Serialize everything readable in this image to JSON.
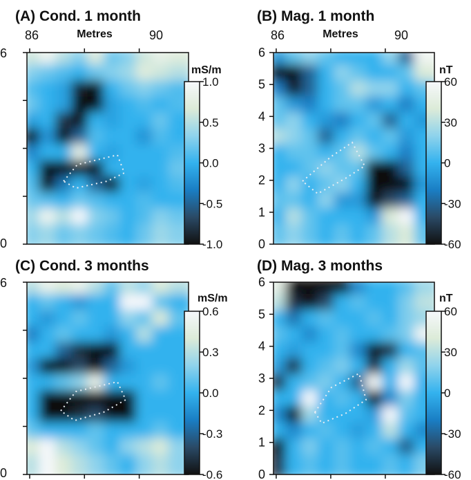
{
  "figure": {
    "type": "heatmap-grid"
  },
  "colorscale": [
    "#111111",
    "#2a4a66",
    "#1a7ec4",
    "#33b2ee",
    "#8fd3ec",
    "#dcebd8",
    "#f6f8fb"
  ],
  "chart_data": [
    {
      "type": "heatmap",
      "title": "(A) Cond. 1 month",
      "xlabel": "Metres",
      "x_ticks": [
        86,
        90
      ],
      "xlim": [
        85.9,
        91.8
      ],
      "ylim": [
        0,
        6
      ],
      "y_ticks": [
        0,
        6
      ],
      "colorbar": {
        "unit": "mS/m",
        "ticks": [
          "1.0",
          "0.5",
          "0.0",
          "-0.5",
          "-1.0"
        ],
        "range": [
          -1.0,
          1.0
        ]
      },
      "grid": {
        "rows": 12,
        "cols": 10,
        "values": [
          [
            0.6,
            0.9,
            0.5,
            0.3,
            0.7,
            0.2,
            0.3,
            0.6,
            0.8,
            0.7
          ],
          [
            0.3,
            0.2,
            0.1,
            0.0,
            0.2,
            0.3,
            0.4,
            0.7,
            0.6,
            0.5
          ],
          [
            0.1,
            0.0,
            -0.1,
            -0.9,
            -1.0,
            0.0,
            0.2,
            0.3,
            0.2,
            0.1
          ],
          [
            0.2,
            0.0,
            -0.1,
            -1.0,
            -1.0,
            -0.1,
            0.0,
            0.1,
            0.0,
            0.1
          ],
          [
            -0.1,
            0.0,
            -0.8,
            -1.0,
            0.0,
            -0.1,
            0.0,
            0.0,
            0.2,
            0.0
          ],
          [
            -1.0,
            -0.2,
            -1.0,
            -0.5,
            0.1,
            0.0,
            0.0,
            -0.2,
            0.1,
            0.0
          ],
          [
            -0.3,
            0.0,
            0.0,
            0.8,
            0.0,
            -0.1,
            0.0,
            0.0,
            0.0,
            0.1
          ],
          [
            0.0,
            -1.0,
            -1.0,
            -0.9,
            -1.0,
            0.0,
            0.0,
            0.0,
            0.0,
            0.2
          ],
          [
            0.1,
            -1.0,
            -0.4,
            0.0,
            -0.5,
            -1.0,
            0.0,
            -0.1,
            0.0,
            0.1
          ],
          [
            0.2,
            0.1,
            0.0,
            0.2,
            0.1,
            0.0,
            0.0,
            0.1,
            0.0,
            0.0
          ],
          [
            0.4,
            0.9,
            0.5,
            1.0,
            0.3,
            0.2,
            0.0,
            0.1,
            0.3,
            0.2
          ],
          [
            0.3,
            0.4,
            0.2,
            0.3,
            0.2,
            0.1,
            0.0,
            0.2,
            0.4,
            0.3
          ]
        ]
      }
    },
    {
      "type": "heatmap",
      "title": "(B) Mag. 1 month",
      "xlabel": "Metres",
      "x_ticks": [
        86,
        90
      ],
      "xlim": [
        85.9,
        91.8
      ],
      "ylim": [
        0,
        6
      ],
      "y_ticks": [
        0,
        1,
        2,
        3,
        4,
        5,
        6
      ],
      "colorbar": {
        "unit": "nT",
        "ticks": [
          "60",
          "30",
          "0",
          "-30",
          "-60"
        ],
        "range": [
          -60,
          60
        ]
      },
      "grid": {
        "rows": 12,
        "cols": 10,
        "values": [
          [
            -10,
            10,
            20,
            10,
            0,
            0,
            0,
            20,
            -30,
            55
          ],
          [
            -60,
            -60,
            -30,
            0,
            20,
            10,
            0,
            0,
            10,
            40
          ],
          [
            -20,
            -55,
            -30,
            0,
            10,
            30,
            20,
            20,
            0,
            10
          ],
          [
            10,
            -10,
            -20,
            0,
            10,
            10,
            -10,
            0,
            -20,
            0
          ],
          [
            10,
            20,
            0,
            -10,
            -20,
            0,
            10,
            -30,
            0,
            -10
          ],
          [
            30,
            20,
            10,
            -30,
            0,
            10,
            0,
            10,
            -10,
            0
          ],
          [
            0,
            10,
            10,
            0,
            10,
            30,
            10,
            0,
            -20,
            0
          ],
          [
            0,
            0,
            10,
            20,
            10,
            10,
            -60,
            -60,
            -30,
            0
          ],
          [
            0,
            20,
            0,
            10,
            20,
            0,
            -60,
            -60,
            -60,
            -10
          ],
          [
            10,
            10,
            0,
            20,
            -10,
            -10,
            -60,
            -40,
            -30,
            0
          ],
          [
            0,
            30,
            10,
            0,
            0,
            0,
            -10,
            40,
            60,
            0
          ],
          [
            10,
            20,
            10,
            0,
            10,
            0,
            10,
            30,
            40,
            10
          ]
        ]
      }
    },
    {
      "type": "heatmap",
      "title": "(C) Cond. 3 months",
      "ylim": [
        0,
        6
      ],
      "y_ticks": [
        0,
        6
      ],
      "colorbar": {
        "unit": "mS/m",
        "ticks": [
          "0.6",
          "0.3",
          "0.0",
          "-0.3",
          "-0.6"
        ],
        "range": [
          -0.6,
          0.6
        ]
      },
      "grid": {
        "rows": 12,
        "cols": 10,
        "values": [
          [
            0.3,
            0.5,
            0.4,
            0.5,
            0.3,
            0.1,
            0.3,
            0.2,
            0.4,
            0.3
          ],
          [
            0.0,
            0.1,
            0.0,
            -0.1,
            0.0,
            0.0,
            0.6,
            0.6,
            0.1,
            0.0
          ],
          [
            0.0,
            -0.1,
            0.0,
            0.1,
            0.0,
            0.0,
            0.2,
            0.1,
            0.4,
            0.1
          ],
          [
            -0.2,
            0.0,
            0.1,
            0.0,
            0.0,
            -0.1,
            0.0,
            0.3,
            0.0,
            0.0
          ],
          [
            0.0,
            0.0,
            -0.3,
            -0.5,
            -0.6,
            -0.6,
            0.0,
            0.0,
            0.0,
            0.0
          ],
          [
            -0.1,
            -0.6,
            -0.6,
            -0.4,
            -0.6,
            -0.3,
            -0.1,
            0.0,
            0.0,
            0.0
          ],
          [
            0.0,
            0.0,
            0.1,
            0.2,
            0.5,
            0.0,
            0.0,
            0.0,
            0.1,
            0.0
          ],
          [
            0.0,
            -0.6,
            -0.6,
            -0.6,
            -0.6,
            -0.6,
            -0.6,
            0.0,
            0.0,
            0.0
          ],
          [
            0.0,
            -0.6,
            -0.6,
            -0.5,
            -0.4,
            -0.6,
            -0.6,
            0.0,
            0.0,
            0.0
          ],
          [
            0.1,
            0.0,
            0.0,
            0.0,
            0.1,
            0.0,
            0.0,
            0.0,
            0.1,
            0.0
          ],
          [
            0.4,
            0.6,
            0.3,
            0.2,
            0.1,
            0.0,
            0.2,
            0.3,
            0.4,
            0.2
          ],
          [
            0.3,
            0.6,
            0.4,
            0.3,
            0.2,
            0.1,
            0.0,
            0.2,
            0.3,
            0.2
          ]
        ]
      }
    },
    {
      "type": "heatmap",
      "title": "(D) Mag. 3 months",
      "ylim": [
        0,
        6
      ],
      "y_ticks": [
        0,
        1,
        2,
        3,
        4,
        5,
        6
      ],
      "colorbar": {
        "unit": "nT",
        "ticks": [
          "60",
          "30",
          "0",
          "-30",
          "-60"
        ],
        "range": [
          -75,
          75
        ]
      },
      "grid": {
        "rows": 12,
        "cols": 10,
        "values": [
          [
            60,
            -75,
            -75,
            -75,
            -75,
            -20,
            0,
            0,
            10,
            30
          ],
          [
            40,
            -60,
            -75,
            -50,
            0,
            10,
            0,
            0,
            20,
            40
          ],
          [
            0,
            -30,
            0,
            10,
            0,
            0,
            10,
            0,
            20,
            30
          ],
          [
            10,
            0,
            -20,
            0,
            10,
            0,
            0,
            10,
            20,
            70
          ],
          [
            0,
            -10,
            0,
            0,
            10,
            -20,
            -75,
            -60,
            0,
            10
          ],
          [
            -10,
            -60,
            0,
            10,
            20,
            0,
            -60,
            0,
            30,
            10
          ],
          [
            -60,
            0,
            10,
            20,
            0,
            -40,
            70,
            0,
            75,
            0
          ],
          [
            0,
            0,
            75,
            0,
            10,
            0,
            -75,
            -20,
            20,
            0
          ],
          [
            -20,
            -75,
            30,
            0,
            0,
            0,
            -10,
            75,
            10,
            0
          ],
          [
            0,
            -20,
            0,
            10,
            0,
            -10,
            0,
            40,
            0,
            -20
          ],
          [
            -75,
            0,
            20,
            0,
            10,
            0,
            10,
            0,
            -40,
            0
          ],
          [
            -60,
            0,
            10,
            0,
            10,
            0,
            0,
            10,
            0,
            20
          ]
        ]
      }
    }
  ]
}
